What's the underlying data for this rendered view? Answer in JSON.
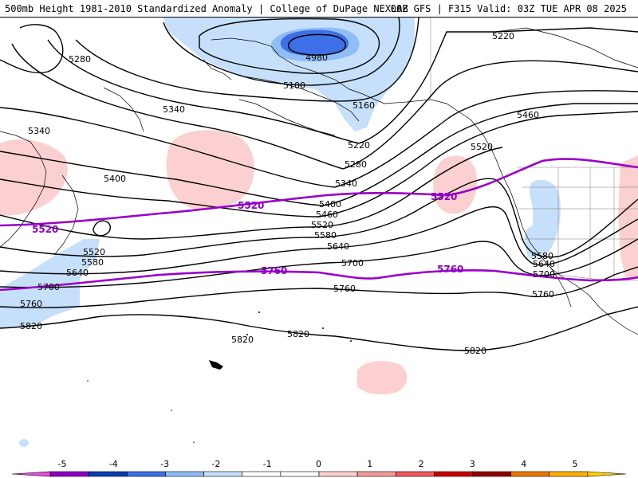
{
  "header": {
    "title_left": "500mb Height 1981-2010 Standardized Anomaly | College of DuPage NEXLAB",
    "title_right": "00Z GFS | F315 Valid: 03Z TUE APR 08 2025"
  },
  "colors": {
    "contour": "#000000",
    "highlight_contour": "#9a00c8",
    "anom_neg1": "#c6e0fb",
    "anom_neg2": "#8fbdf6",
    "anom_neg3": "#3e6fe6",
    "anom_pos1": "#fcd0d0",
    "coast": "#000000"
  },
  "contour_labels": [
    {
      "id": "5220-ne",
      "text": "5220"
    },
    {
      "id": "4980",
      "text": "4980"
    },
    {
      "id": "5280-nw",
      "text": "5280"
    },
    {
      "id": "5100",
      "text": "5100"
    },
    {
      "id": "5160",
      "text": "5160"
    },
    {
      "id": "5340-a",
      "text": "5340"
    },
    {
      "id": "5460-e",
      "text": "5460"
    },
    {
      "id": "5340-w",
      "text": "5340"
    },
    {
      "id": "5520-e",
      "text": "5520"
    },
    {
      "id": "5220-c",
      "text": "5220"
    },
    {
      "id": "5280-c",
      "text": "5280"
    },
    {
      "id": "5400-w",
      "text": "5400"
    },
    {
      "id": "5340-c",
      "text": "5340"
    },
    {
      "id": "5400-c",
      "text": "5400"
    },
    {
      "id": "5460-c",
      "text": "5460"
    },
    {
      "id": "5520-c",
      "text": "5520"
    },
    {
      "id": "5580-c",
      "text": "5580"
    },
    {
      "id": "5640-c",
      "text": "5640"
    },
    {
      "id": "5700-c",
      "text": "5700"
    },
    {
      "id": "5520-sw",
      "text": "5520"
    },
    {
      "id": "5580-sw",
      "text": "5580"
    },
    {
      "id": "5640-sw",
      "text": "5640"
    },
    {
      "id": "5700-w",
      "text": "5700"
    },
    {
      "id": "5760-w",
      "text": "5760"
    },
    {
      "id": "5820-w",
      "text": "5820"
    },
    {
      "id": "5760-c",
      "text": "5760"
    },
    {
      "id": "5760-e",
      "text": "5760"
    },
    {
      "id": "5580-e",
      "text": "5580"
    },
    {
      "id": "5640-e",
      "text": "5640"
    },
    {
      "id": "5700-e",
      "text": "5700"
    },
    {
      "id": "5820-a",
      "text": "5820"
    },
    {
      "id": "5820-b",
      "text": "5820"
    },
    {
      "id": "5820-s",
      "text": "5820"
    }
  ],
  "highlight_labels": [
    {
      "id": "5520-p1",
      "text": "5520"
    },
    {
      "id": "5520-p2",
      "text": "5520"
    },
    {
      "id": "5520-p3",
      "text": "5520"
    },
    {
      "id": "5760-p1",
      "text": "5760"
    },
    {
      "id": "5760-p2",
      "text": "5760"
    }
  ],
  "legend": {
    "ticks": [
      "-5",
      "-4",
      "-3",
      "-2",
      "-1",
      "0",
      "1",
      "2",
      "3",
      "4",
      "5"
    ],
    "colors": [
      "#e34fd9",
      "#8d00c6",
      "#0a3bb5",
      "#3f6fe6",
      "#8ebcf5",
      "#c6e0fb",
      "#ffffff",
      "#ffffff",
      "#fcd0d0",
      "#f49a9a",
      "#ef5a5a",
      "#c90000",
      "#8f0000",
      "#f07800",
      "#ffb000",
      "#ffd200"
    ]
  }
}
